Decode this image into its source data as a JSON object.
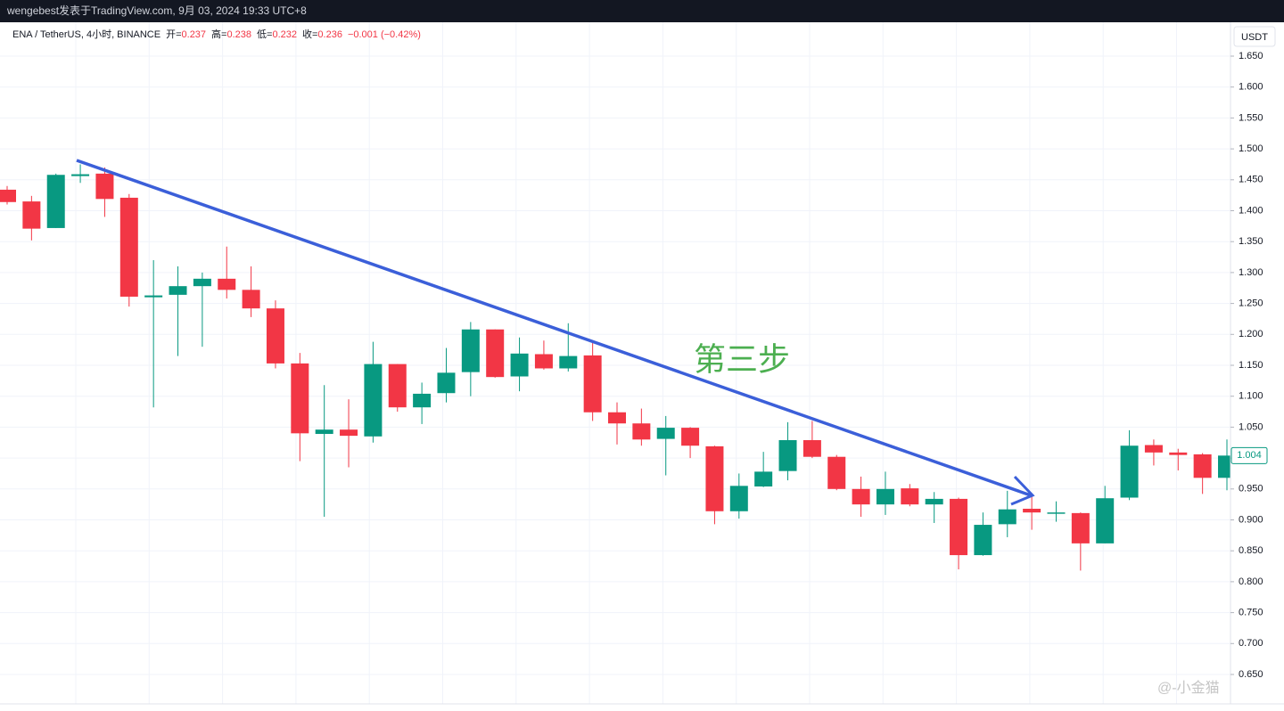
{
  "header": "wengebest发表于TradingView.com, 9月 03, 2024 19:33 UTC+8",
  "chart_data": {
    "type": "candlestick",
    "legend": {
      "symbol": "ENA / TetherUS, 4小时, BINANCE",
      "fields": [
        {
          "label": "开=",
          "value": "0.237"
        },
        {
          "label": "高=",
          "value": "0.238"
        },
        {
          "label": "低=",
          "value": "0.232"
        },
        {
          "label": "收=",
          "value": "0.236"
        }
      ],
      "change": "−0.001 (−0.42%)"
    },
    "currency": "USDT",
    "annotation": "第三步",
    "watermark": "@-小金猫",
    "up_color": "#089981",
    "down_color": "#f23645",
    "grid": true,
    "ylim": [
      0.65,
      1.65
    ],
    "yticks": [
      {
        "value": 0.65,
        "label": "0.650"
      },
      {
        "value": 0.7,
        "label": "0.700"
      },
      {
        "value": 0.75,
        "label": "0.750"
      },
      {
        "value": 0.8,
        "label": "0.800"
      },
      {
        "value": 0.85,
        "label": "0.850"
      },
      {
        "value": 0.9,
        "label": "0.900"
      },
      {
        "value": 0.95,
        "label": "0.950"
      },
      {
        "value": 1.0,
        "label": "1.000"
      },
      {
        "value": 1.05,
        "label": "1.050"
      },
      {
        "value": 1.1,
        "label": "1.100"
      },
      {
        "value": 1.15,
        "label": "1.150"
      },
      {
        "value": 1.2,
        "label": "1.200"
      },
      {
        "value": 1.25,
        "label": "1.250"
      },
      {
        "value": 1.3,
        "label": "1.300"
      },
      {
        "value": 1.35,
        "label": "1.350"
      },
      {
        "value": 1.4,
        "label": "1.400"
      },
      {
        "value": 1.45,
        "label": "1.450"
      },
      {
        "value": 1.5,
        "label": "1.500"
      },
      {
        "value": 1.55,
        "label": "1.550"
      },
      {
        "value": 1.6,
        "label": "1.600"
      },
      {
        "value": 1.65,
        "label": "1.650"
      }
    ],
    "last_price": 1.004,
    "open": [
      1.434,
      1.415,
      1.372,
      1.456,
      1.46,
      1.421,
      1.26,
      1.264,
      1.278,
      1.29,
      1.272,
      1.242,
      1.153,
      1.039,
      1.046,
      1.035,
      1.152,
      1.082,
      1.105,
      1.139,
      1.208,
      1.132,
      1.168,
      1.145,
      1.166,
      1.074,
      1.056,
      1.031,
      1.049,
      1.019,
      0.914,
      0.954,
      0.979,
      1.029,
      1.002,
      0.95,
      0.925,
      0.951,
      0.925,
      0.934,
      0.843,
      0.893,
      0.918,
      0.911,
      0.911,
      0.862,
      0.936,
      1.021,
      1.009,
      1.006,
      0.968
    ],
    "high": [
      1.44,
      1.424,
      1.46,
      1.475,
      1.47,
      1.427,
      1.32,
      1.31,
      1.3,
      1.342,
      1.31,
      1.255,
      1.17,
      1.118,
      1.095,
      1.188,
      1.152,
      1.122,
      1.178,
      1.22,
      1.208,
      1.195,
      1.19,
      1.218,
      1.188,
      1.09,
      1.08,
      1.068,
      1.05,
      1.02,
      0.975,
      1.01,
      1.058,
      1.06,
      1.005,
      0.97,
      0.978,
      0.958,
      0.945,
      0.936,
      0.912,
      0.947,
      0.94,
      0.93,
      0.912,
      0.955,
      1.045,
      1.03,
      1.015,
      1.008,
      1.03
    ],
    "low": [
      1.41,
      1.352,
      1.372,
      1.445,
      1.39,
      1.245,
      1.082,
      1.165,
      1.18,
      1.258,
      1.228,
      1.145,
      0.995,
      0.905,
      0.985,
      1.025,
      1.075,
      1.055,
      1.09,
      1.1,
      1.13,
      1.108,
      1.143,
      1.14,
      1.06,
      1.022,
      1.02,
      0.972,
      1.0,
      0.893,
      0.902,
      0.953,
      0.964,
      1.0,
      0.948,
      0.905,
      0.908,
      0.922,
      0.895,
      0.82,
      0.842,
      0.872,
      0.884,
      0.897,
      0.818,
      0.862,
      0.932,
      0.988,
      0.98,
      0.942,
      0.948
    ],
    "close": [
      1.414,
      1.371,
      1.458,
      1.459,
      1.419,
      1.261,
      1.263,
      1.278,
      1.29,
      1.272,
      1.242,
      1.153,
      1.04,
      1.046,
      1.036,
      1.152,
      1.082,
      1.104,
      1.138,
      1.208,
      1.131,
      1.169,
      1.145,
      1.165,
      1.074,
      1.056,
      1.03,
      1.049,
      1.02,
      0.914,
      0.955,
      0.978,
      1.029,
      1.002,
      0.95,
      0.925,
      0.95,
      0.925,
      0.934,
      0.843,
      0.892,
      0.917,
      0.912,
      0.912,
      0.862,
      0.935,
      1.02,
      1.009,
      1.005,
      0.968,
      1.004
    ]
  }
}
